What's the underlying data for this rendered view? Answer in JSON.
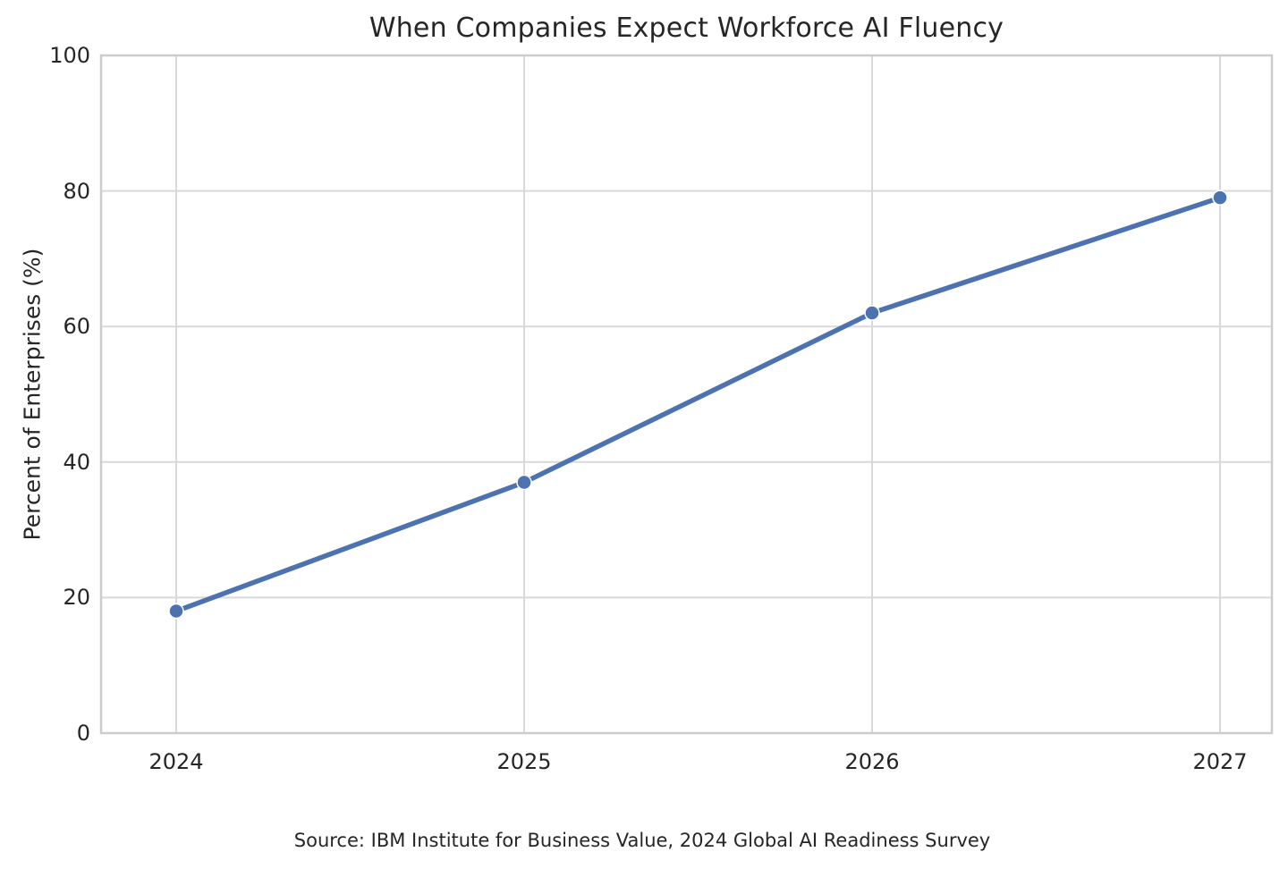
{
  "chart_data": {
    "type": "line",
    "title": "When Companies Expect Workforce AI Fluency",
    "xlabel": "",
    "ylabel": "Percent of Enterprises (%)",
    "x": [
      2024,
      2025,
      2026,
      2027
    ],
    "categories": [
      "2024",
      "2025",
      "2026",
      "2027"
    ],
    "series": [
      {
        "name": "Percent of Enterprises",
        "values": [
          18,
          37,
          62,
          79
        ]
      }
    ],
    "ylim": [
      0,
      100
    ],
    "yticks": [
      0,
      20,
      40,
      60,
      80,
      100
    ],
    "grid": true,
    "legend_position": "none",
    "line_color": "#4C72B0",
    "marker_color": "#4C72B0",
    "grid_color": "#d9d9d9",
    "spine_color": "#cccccc",
    "source": "Source: IBM Institute for Business Value, 2024 Global AI Readiness Survey"
  }
}
